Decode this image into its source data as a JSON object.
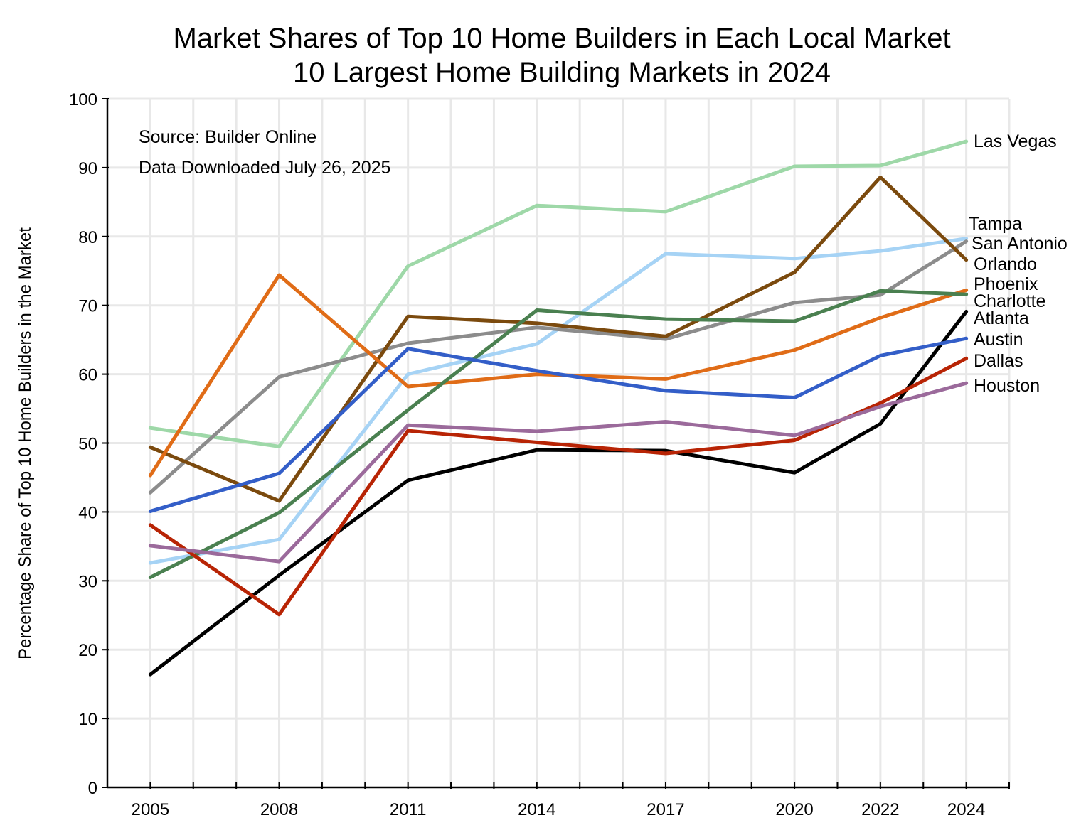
{
  "chart_data": {
    "type": "line",
    "title": "Market Shares of Top 10 Home Builders in Each Local Market",
    "subtitle": "10 Largest Home Building Markets in 2024",
    "xlabel": "",
    "ylabel": "Percentage Share of Top 10 Home Builders in the Market",
    "annotations": [
      "Source:  Builder Online",
      "Data Downloaded July 26, 2025"
    ],
    "x": [
      2005,
      2008,
      2011,
      2014,
      2017,
      2020,
      2022,
      2024
    ],
    "x_tick_labels": [
      "2005",
      "2008",
      "2011",
      "2014",
      "2017",
      "2020",
      "2022",
      "2024"
    ],
    "xlim": [
      2004,
      2025
    ],
    "ylim": [
      0,
      100
    ],
    "y_ticks": [
      0,
      10,
      20,
      30,
      40,
      50,
      60,
      70,
      80,
      90,
      100
    ],
    "grid": true,
    "legend": "direct labels at right",
    "series": [
      {
        "name": "Las Vegas",
        "color": "#9ed8a8",
        "values": [
          52.2,
          49.5,
          75.7,
          84.5,
          83.6,
          90.2,
          90.3,
          93.8
        ]
      },
      {
        "name": "Tampa",
        "color": "#a6d3f5",
        "values": [
          32.6,
          36.0,
          60.0,
          64.4,
          77.5,
          76.8,
          77.9,
          79.7
        ]
      },
      {
        "name": "San Antonio",
        "color": "#8c8c8c",
        "values": [
          42.8,
          59.6,
          64.5,
          66.8,
          65.1,
          70.4,
          71.5,
          79.3
        ]
      },
      {
        "name": "Orlando",
        "color": "#7b4a0e",
        "values": [
          49.4,
          41.6,
          68.4,
          67.4,
          65.5,
          74.8,
          88.6,
          76.6
        ]
      },
      {
        "name": "Phoenix",
        "color": "#e06c17",
        "values": [
          45.3,
          74.4,
          58.2,
          60.0,
          59.3,
          63.5,
          68.2,
          72.2
        ]
      },
      {
        "name": "Charlotte",
        "color": "#4a8050",
        "values": [
          30.5,
          39.9,
          54.8,
          69.3,
          68.0,
          67.7,
          72.1,
          71.6
        ]
      },
      {
        "name": "Atlanta",
        "color": "#000000",
        "values": [
          16.4,
          30.8,
          44.6,
          49.0,
          48.9,
          45.7,
          52.8,
          69.1
        ]
      },
      {
        "name": "Austin",
        "color": "#335ec8",
        "values": [
          40.1,
          45.6,
          63.7,
          60.5,
          57.6,
          56.6,
          62.7,
          65.2
        ]
      },
      {
        "name": "Dallas",
        "color": "#b82405",
        "values": [
          38.1,
          25.1,
          51.8,
          50.1,
          48.5,
          50.4,
          55.8,
          62.3
        ]
      },
      {
        "name": "Houston",
        "color": "#9b6a9b",
        "values": [
          35.1,
          32.8,
          52.6,
          51.7,
          53.1,
          51.1,
          55.3,
          58.7
        ]
      }
    ],
    "label_order": [
      "Las Vegas",
      "Tampa",
      "San Antonio",
      "Orlando",
      "Phoenix",
      "Charlotte",
      "Atlanta",
      "Austin",
      "Dallas",
      "Houston"
    ]
  }
}
